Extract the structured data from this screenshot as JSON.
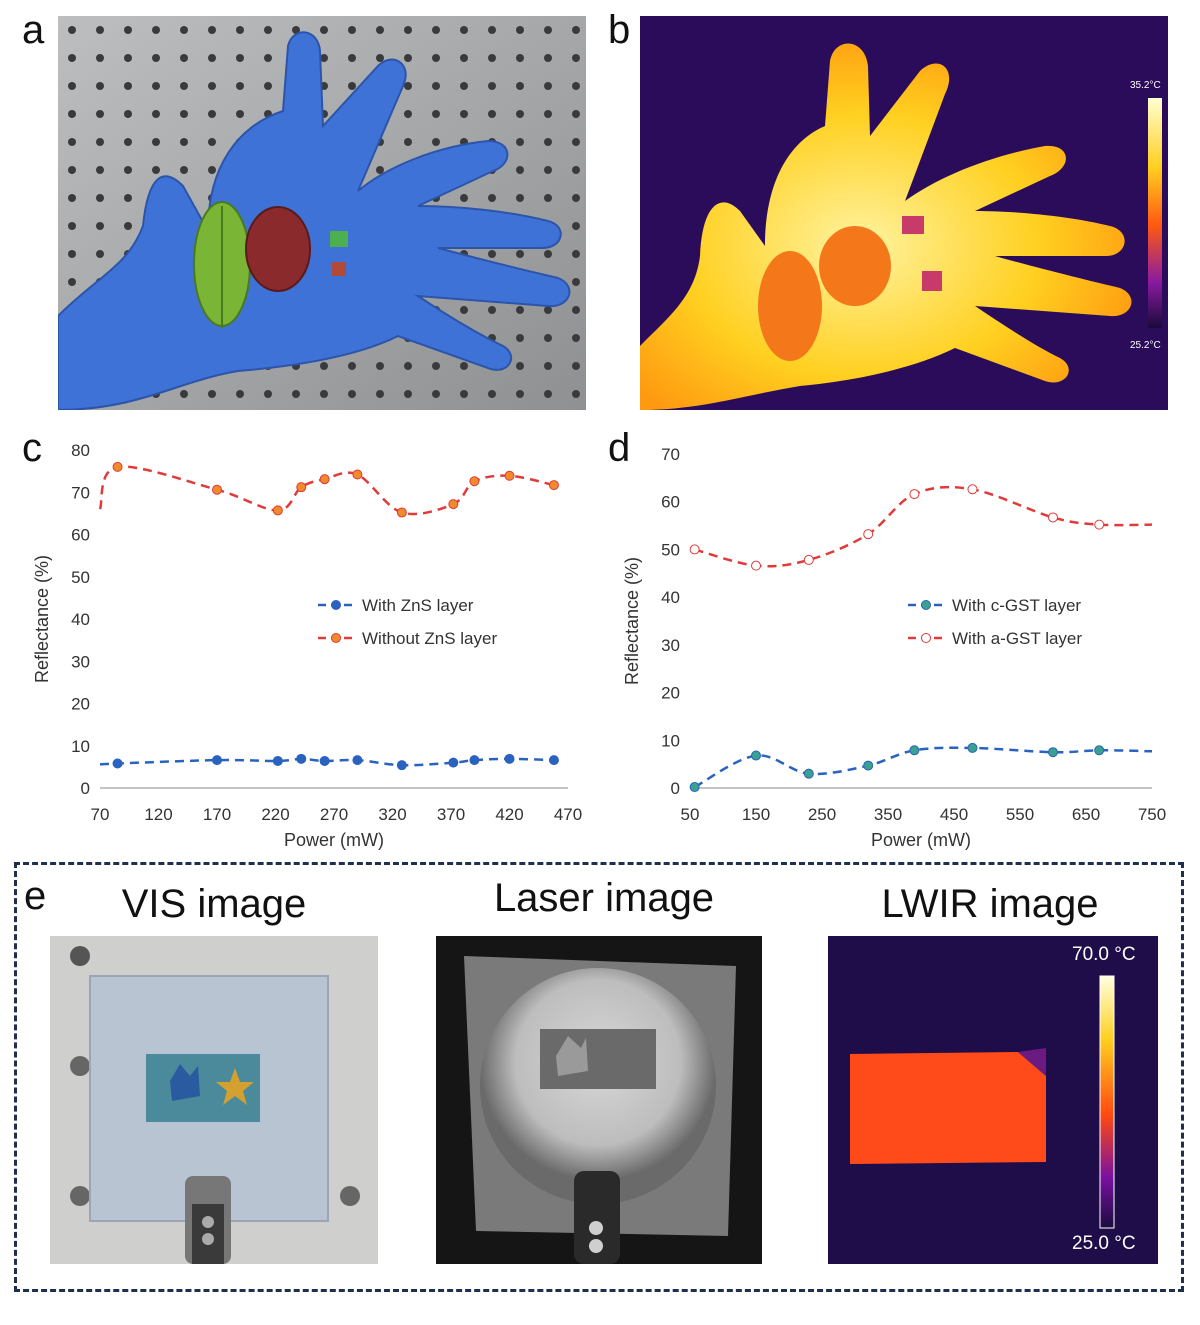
{
  "panels": {
    "a": {
      "letter": "a"
    },
    "b": {
      "letter": "b",
      "scale_max": "35.2°C",
      "scale_min": "25.2°C"
    },
    "c": {
      "letter": "c"
    },
    "d": {
      "letter": "d"
    },
    "e": {
      "letter": "e",
      "titles": [
        "VIS image",
        "Laser image",
        "LWIR image"
      ],
      "lwir_scale_max": "70.0 °C",
      "lwir_scale_min": "25.0 °C"
    }
  },
  "colors": {
    "blue_series": "#2a62c0",
    "red_series": "#e03a3a",
    "orange_marker": "#f08a2a",
    "teal_marker": "#3aa090",
    "frame": "#1f2f4f"
  },
  "chart_data": [
    {
      "id": "c",
      "type": "line",
      "xlabel": "Power (mW)",
      "ylabel": "Reflectance (%)",
      "xlim": [
        70,
        470
      ],
      "ylim": [
        0,
        80
      ],
      "xticks": [
        70,
        120,
        170,
        220,
        270,
        320,
        370,
        420,
        470
      ],
      "yticks": [
        0,
        10,
        20,
        30,
        40,
        50,
        60,
        70,
        80
      ],
      "legend_position": "middle-right",
      "series": [
        {
          "name": "With ZnS layer",
          "x": [
            85,
            170,
            222,
            242,
            262,
            290,
            328,
            372,
            390,
            420,
            458
          ],
          "values": [
            5.8,
            6.6,
            6.4,
            6.9,
            6.4,
            6.6,
            5.4,
            6.0,
            6.6,
            6.9,
            6.6
          ]
        },
        {
          "name": "Without ZnS layer",
          "x": [
            85,
            170,
            222,
            242,
            262,
            290,
            328,
            372,
            390,
            420,
            458
          ],
          "values": [
            76.0,
            70.6,
            65.7,
            71.2,
            73.1,
            74.2,
            65.2,
            67.2,
            72.6,
            73.9,
            71.7
          ]
        }
      ]
    },
    {
      "id": "d",
      "type": "line",
      "xlabel": "Power (mW)",
      "ylabel": "Reflectance (%)",
      "xlim": [
        50,
        750
      ],
      "ylim": [
        0,
        70
      ],
      "xticks": [
        50,
        150,
        250,
        350,
        450,
        550,
        650,
        750
      ],
      "yticks": [
        0,
        10,
        20,
        30,
        40,
        50,
        60,
        70
      ],
      "legend_position": "middle-right",
      "series": [
        {
          "name": "With c-GST layer",
          "x": [
            57,
            150,
            230,
            320,
            390,
            478,
            600,
            670
          ],
          "values": [
            0.2,
            6.8,
            3.0,
            4.7,
            7.9,
            8.4,
            7.5,
            7.9
          ]
        },
        {
          "name": "With a-GST layer",
          "x": [
            57,
            150,
            230,
            320,
            390,
            478,
            600,
            670
          ],
          "values": [
            50.0,
            46.6,
            47.8,
            53.2,
            61.6,
            62.6,
            56.7,
            55.2
          ]
        }
      ]
    }
  ]
}
